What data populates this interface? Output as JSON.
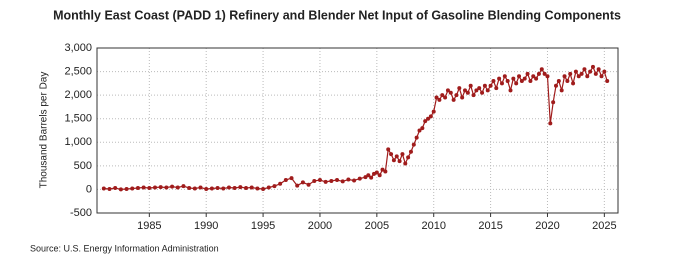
{
  "chart_data": {
    "type": "line",
    "title": "Monthly East Coast (PADD 1) Refinery and Blender Net Input of Gasoline Blending Components",
    "y_label": "Thousand Barrels per Day",
    "source": "Source: U.S. Energy Information Administration",
    "color": "#a01c1c",
    "grid": true,
    "x": [
      1981,
      1981.5,
      1982,
      1982.5,
      1983,
      1983.5,
      1984,
      1984.5,
      1985,
      1985.5,
      1986,
      1986.5,
      1987,
      1987.5,
      1988,
      1988.5,
      1989,
      1989.5,
      1990,
      1990.5,
      1991,
      1991.5,
      1992,
      1992.5,
      1993,
      1993.5,
      1994,
      1994.5,
      1995,
      1995.5,
      1996,
      1996.5,
      1997,
      1997.5,
      1998,
      1998.5,
      1999,
      1999.5,
      2000,
      2000.5,
      2001,
      2001.5,
      2002,
      2002.5,
      2003,
      2003.5,
      2004,
      2004.25,
      2004.5,
      2004.75,
      2005,
      2005.25,
      2005.5,
      2005.75,
      2006,
      2006.25,
      2006.5,
      2006.75,
      2007,
      2007.25,
      2007.5,
      2007.75,
      2008,
      2008.25,
      2008.5,
      2008.75,
      2009,
      2009.25,
      2009.5,
      2009.75,
      2010,
      2010.25,
      2010.5,
      2010.75,
      2011,
      2011.25,
      2011.5,
      2011.75,
      2012,
      2012.25,
      2012.5,
      2012.75,
      2013,
      2013.25,
      2013.5,
      2013.75,
      2014,
      2014.25,
      2014.5,
      2014.75,
      2015,
      2015.25,
      2015.5,
      2015.75,
      2016,
      2016.25,
      2016.5,
      2016.75,
      2017,
      2017.25,
      2017.5,
      2017.75,
      2018,
      2018.25,
      2018.5,
      2018.75,
      2019,
      2019.25,
      2019.5,
      2019.75,
      2020,
      2020.25,
      2020.5,
      2020.75,
      2021,
      2021.25,
      2021.5,
      2021.75,
      2022,
      2022.25,
      2022.5,
      2022.75,
      2023,
      2023.25,
      2023.5,
      2023.75,
      2024,
      2024.25,
      2024.5,
      2024.75,
      2025,
      2025.25
    ],
    "values": [
      20,
      10,
      30,
      0,
      10,
      20,
      30,
      40,
      30,
      40,
      50,
      40,
      60,
      40,
      70,
      30,
      20,
      40,
      10,
      20,
      30,
      20,
      40,
      30,
      50,
      30,
      40,
      20,
      10,
      40,
      70,
      120,
      200,
      240,
      80,
      150,
      100,
      180,
      200,
      160,
      180,
      200,
      170,
      210,
      190,
      230,
      260,
      300,
      250,
      330,
      360,
      300,
      420,
      380,
      850,
      750,
      620,
      700,
      600,
      750,
      550,
      680,
      800,
      950,
      1100,
      1250,
      1300,
      1450,
      1500,
      1550,
      1650,
      1950,
      1900,
      2000,
      1950,
      2100,
      2050,
      1900,
      2000,
      2150,
      1950,
      2100,
      2050,
      2200,
      2000,
      2100,
      2150,
      2050,
      2200,
      2100,
      2200,
      2300,
      2150,
      2350,
      2250,
      2400,
      2300,
      2100,
      2350,
      2250,
      2400,
      2300,
      2350,
      2450,
      2300,
      2400,
      2350,
      2450,
      2550,
      2450,
      2400,
      1400,
      1850,
      2200,
      2300,
      2100,
      2400,
      2300,
      2450,
      2250,
      2500,
      2400,
      2450,
      2550,
      2400,
      2500,
      2600,
      2450,
      2550,
      2400,
      2500,
      2300
    ],
    "xlim": [
      1980.4,
      2026.2
    ],
    "xticks": [
      1985,
      1990,
      1995,
      2000,
      2005,
      2010,
      2015,
      2020,
      2025
    ],
    "ylim": [
      -500,
      3000
    ],
    "yticks": [
      {
        "value": -500,
        "label": "-500"
      },
      0,
      500,
      {
        "value": 1000,
        "label": "1,000"
      },
      {
        "value": 1500,
        "label": "1,500"
      },
      {
        "value": 2000,
        "label": "2,000"
      },
      {
        "value": 2500,
        "label": "2,500"
      },
      {
        "value": 3000,
        "label": "3,000"
      }
    ]
  }
}
